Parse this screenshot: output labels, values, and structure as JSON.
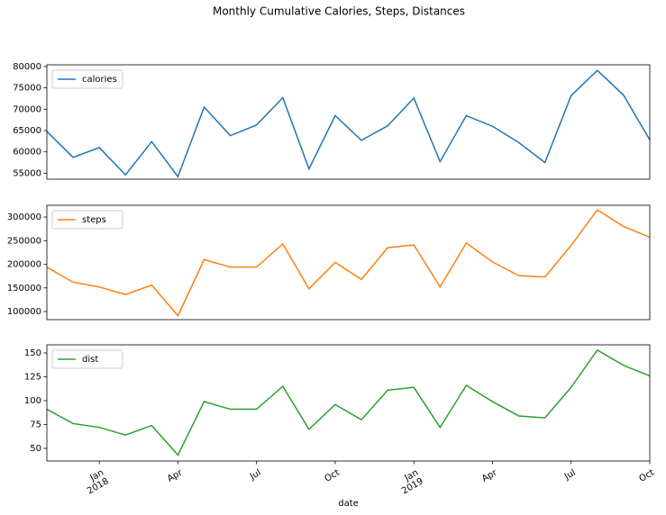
{
  "title": "Monthly Cumulative Calories, Steps, Distances",
  "chart_data": [
    {
      "type": "line",
      "x": [
        "2017-11",
        "2017-12",
        "2018-01",
        "2018-02",
        "2018-03",
        "2018-04",
        "2018-05",
        "2018-06",
        "2018-07",
        "2018-08",
        "2018-09",
        "2018-10",
        "2018-11",
        "2018-12",
        "2019-01",
        "2019-02",
        "2019-03",
        "2019-04",
        "2019-05",
        "2019-06",
        "2019-07",
        "2019-08",
        "2019-09",
        "2019-10"
      ],
      "series": [
        {
          "name": "calories",
          "color": "#1f77b4",
          "values": [
            64800,
            58700,
            61000,
            54600,
            62400,
            54200,
            70500,
            63800,
            66300,
            72700,
            56000,
            68500,
            62700,
            66100,
            72600,
            57700,
            68500,
            66000,
            62200,
            57500,
            73200,
            79100,
            73300,
            62800
          ]
        }
      ],
      "xlim": [
        "2017-11",
        "2019-10"
      ],
      "ylim": [
        53600,
        80400
      ],
      "yticks": [
        55000,
        60000,
        65000,
        70000,
        75000,
        80000
      ],
      "legend": "upper left"
    },
    {
      "type": "line",
      "x": [
        "2017-11",
        "2017-12",
        "2018-01",
        "2018-02",
        "2018-03",
        "2018-04",
        "2018-05",
        "2018-06",
        "2018-07",
        "2018-08",
        "2018-09",
        "2018-10",
        "2018-11",
        "2018-12",
        "2019-01",
        "2019-02",
        "2019-03",
        "2019-04",
        "2019-05",
        "2019-06",
        "2019-07",
        "2019-08",
        "2019-09",
        "2019-10"
      ],
      "series": [
        {
          "name": "steps",
          "color": "#ff7f0e",
          "values": [
            194000,
            162000,
            152000,
            136000,
            156000,
            91000,
            210000,
            194000,
            194000,
            243000,
            148000,
            204000,
            168000,
            235000,
            241000,
            152000,
            245000,
            205000,
            176000,
            173000,
            240000,
            315000,
            280000,
            257000
          ]
        }
      ],
      "xlim": [
        "2017-11",
        "2019-10"
      ],
      "ylim": [
        82900,
        324800
      ],
      "yticks": [
        100000,
        150000,
        200000,
        250000,
        300000
      ],
      "legend": "upper left"
    },
    {
      "type": "line",
      "x": [
        "2017-11",
        "2017-12",
        "2018-01",
        "2018-02",
        "2018-03",
        "2018-04",
        "2018-05",
        "2018-06",
        "2018-07",
        "2018-08",
        "2018-09",
        "2018-10",
        "2018-11",
        "2018-12",
        "2019-01",
        "2019-02",
        "2019-03",
        "2019-04",
        "2019-05",
        "2019-06",
        "2019-07",
        "2019-08",
        "2019-09",
        "2019-10"
      ],
      "series": [
        {
          "name": "dist",
          "color": "#2ca02c",
          "values": [
            91,
            76,
            72,
            64,
            74,
            43,
            99,
            91,
            91,
            115,
            70,
            96,
            80,
            111,
            114,
            72,
            116,
            99,
            84,
            82,
            114,
            153,
            137,
            126
          ]
        }
      ],
      "xlim": [
        "2017-11",
        "2019-10"
      ],
      "ylim": [
        36.8,
        158.5
      ],
      "yticks": [
        50,
        75,
        100,
        125,
        150
      ],
      "legend": "upper left",
      "xlabel": "date",
      "xticks": [
        {
          "value": "2018-01",
          "label": "Jan\n2018"
        },
        {
          "value": "2018-04",
          "label": "Apr"
        },
        {
          "value": "2018-07",
          "label": "Jul"
        },
        {
          "value": "2018-10",
          "label": "Oct"
        },
        {
          "value": "2019-01",
          "label": "Jan\n2019"
        },
        {
          "value": "2019-04",
          "label": "Apr"
        },
        {
          "value": "2019-07",
          "label": "Jul"
        },
        {
          "value": "2019-10",
          "label": "Oct"
        }
      ]
    }
  ]
}
